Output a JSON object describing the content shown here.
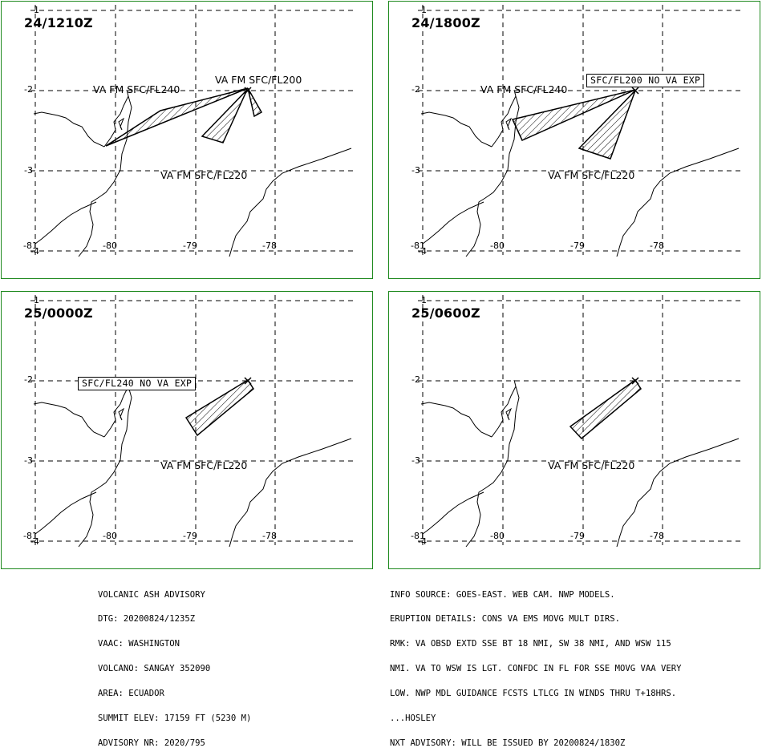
{
  "panels": [
    {
      "time": "24/1210Z",
      "labels": [
        "VA FM SFC/FL240",
        "VA FM SFC/FL200",
        "VA FM SFC/FL220"
      ],
      "ticks": {
        "lat": [
          "-1",
          "-2",
          "-3",
          "-4"
        ],
        "lon": [
          "-81",
          "-80",
          "-79",
          "-78"
        ]
      }
    },
    {
      "time": "24/1800Z",
      "labels": [
        "VA FM SFC/FL240",
        "SFC/FL200 NO VA EXP",
        "VA FM SFC/FL220"
      ],
      "ticks": {
        "lat": [
          "-1",
          "-2",
          "-3",
          "-4"
        ],
        "lon": [
          "-81",
          "-80",
          "-79",
          "-78"
        ]
      }
    },
    {
      "time": "25/0000Z",
      "labels": [
        "SFC/FL240 NO VA EXP",
        "VA FM SFC/FL220"
      ],
      "ticks": {
        "lat": [
          "-1",
          "-2",
          "-3",
          "-4"
        ],
        "lon": [
          "-81",
          "-80",
          "-79",
          "-78"
        ]
      }
    },
    {
      "time": "25/0600Z",
      "labels": [
        "VA FM SFC/FL220"
      ],
      "ticks": {
        "lat": [
          "-1",
          "-2",
          "-3",
          "-4"
        ],
        "lon": [
          "-81",
          "-80",
          "-79",
          "-78"
        ]
      }
    }
  ],
  "advisory_left": [
    "VOLCANIC ASH ADVISORY",
    "DTG: 20200824/1235Z",
    "VAAC: WASHINGTON",
    "VOLCANO: SANGAY 352090",
    "AREA: ECUADOR",
    "SUMMIT ELEV: 17159 FT (5230 M)",
    "ADVISORY NR: 2020/795"
  ],
  "advisory_right": [
    "INFO SOURCE: GOES-EAST. WEB CAM. NWP MODELS.",
    "ERUPTION DETAILS: CONS VA EMS MOVG MULT DIRS.",
    "RMK: VA OBSD EXTD SSE BT 18 NMI, SW 38 NMI, AND WSW 115",
    "NMI. VA TO WSW IS LGT. CONFDC IN FL FOR SSE MOVG VAA VERY",
    "LOW. NWP MDL GUIDANCE FCSTS LTLCG IN WINDS THRU T+18HRS.",
    "...HOSLEY",
    "NXT ADVISORY: WILL BE ISSUED BY 20200824/1830Z"
  ],
  "colors": {
    "frame": "#1f8a1f",
    "ink": "#000000"
  }
}
